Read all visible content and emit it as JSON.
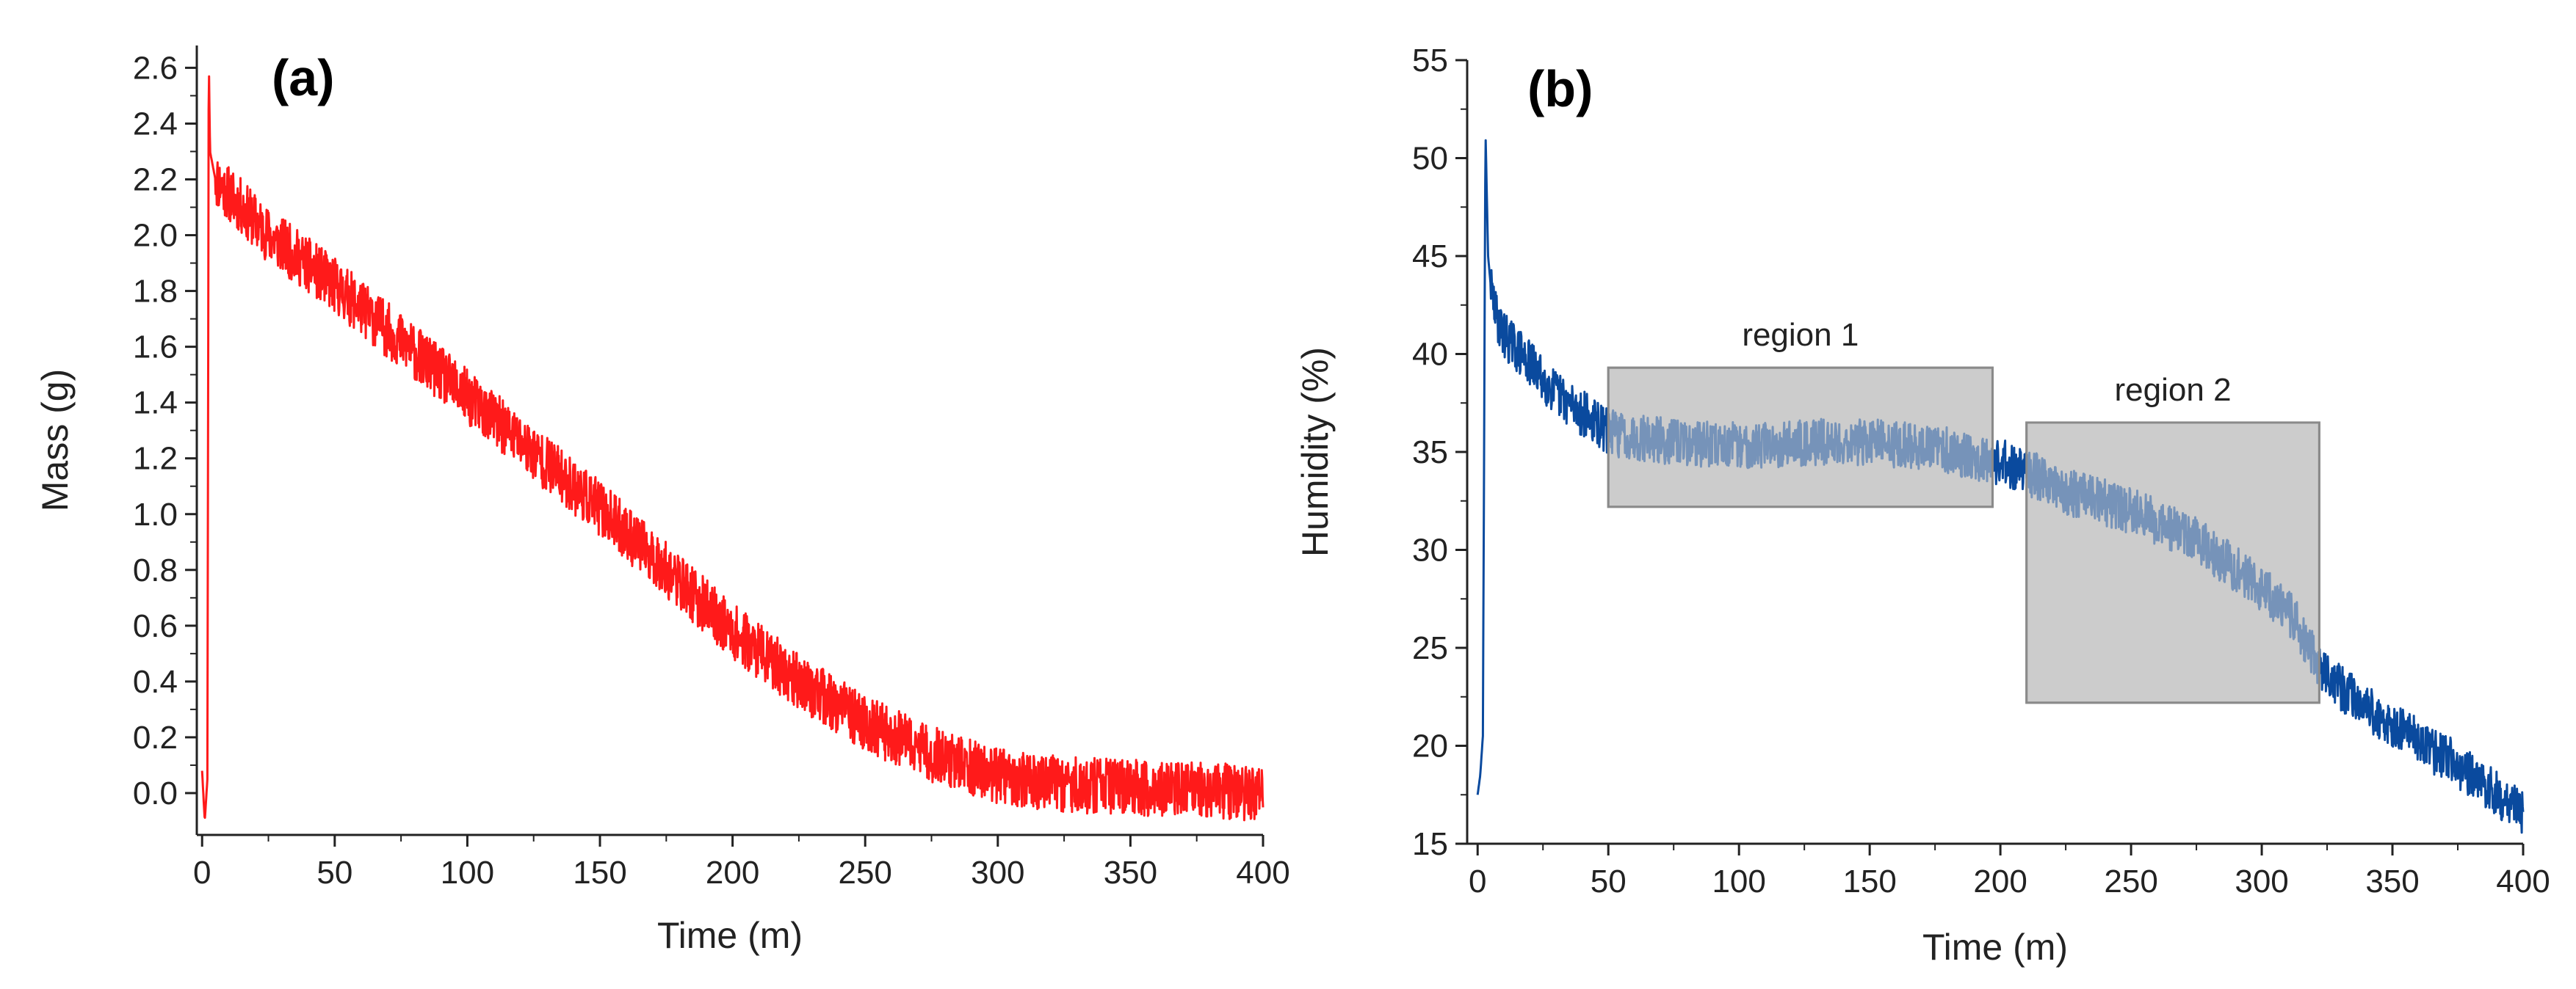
{
  "chart_data": [
    {
      "type": "line",
      "panel_label": "(a)",
      "title": "",
      "xlabel": "Time (m)",
      "ylabel": "Mass (g)",
      "xlim": [
        -2,
        400
      ],
      "ylim": [
        -0.15,
        2.68
      ],
      "xticks": [
        0,
        50,
        100,
        150,
        200,
        250,
        300,
        350,
        400
      ],
      "xtick_labels": [
        "0",
        "50",
        "100",
        "150",
        "200",
        "250",
        "300",
        "350",
        "400"
      ],
      "yticks": [
        0.0,
        0.2,
        0.4,
        0.6,
        0.8,
        1.0,
        1.2,
        1.4,
        1.6,
        1.8,
        2.0,
        2.2,
        2.4,
        2.6
      ],
      "ytick_labels": [
        "0.0",
        "0.2",
        "0.4",
        "0.6",
        "0.8",
        "1.0",
        "1.2",
        "1.4",
        "1.6",
        "1.8",
        "2.0",
        "2.2",
        "2.4",
        "2.6"
      ],
      "grid": false,
      "series": [
        {
          "name": "Mass",
          "color": "#ff1a1a",
          "noise_band": 0.1,
          "x": [
            0,
            1,
            2,
            2.5,
            3,
            4,
            5,
            10,
            25,
            50,
            75,
            100,
            125,
            150,
            175,
            200,
            225,
            250,
            275,
            300,
            325,
            350,
            375,
            400
          ],
          "values": [
            0.08,
            -0.1,
            0.05,
            2.65,
            2.3,
            2.25,
            2.2,
            2.15,
            2.0,
            1.82,
            1.62,
            1.42,
            1.22,
            1.02,
            0.8,
            0.58,
            0.4,
            0.25,
            0.14,
            0.06,
            0.03,
            0.02,
            0.01,
            0.0
          ]
        }
      ]
    },
    {
      "type": "line",
      "panel_label": "(b)",
      "title": "",
      "xlabel": "Time (m)",
      "ylabel": "Humidity (%)",
      "xlim": [
        -4,
        400
      ],
      "ylim": [
        15,
        55
      ],
      "xticks": [
        0,
        50,
        100,
        150,
        200,
        250,
        300,
        350,
        400
      ],
      "xtick_labels": [
        "0",
        "50",
        "100",
        "150",
        "200",
        "250",
        "300",
        "350",
        "400"
      ],
      "yticks": [
        15,
        20,
        25,
        30,
        35,
        40,
        45,
        50,
        55
      ],
      "ytick_labels": [
        "15",
        "20",
        "25",
        "30",
        "35",
        "40",
        "45",
        "50",
        "55"
      ],
      "grid": false,
      "series": [
        {
          "name": "Humidity",
          "color": "#0a4a9e",
          "noise_band": 1.2,
          "x": [
            0,
            1,
            2,
            3,
            4,
            5,
            7,
            10,
            20,
            30,
            40,
            50,
            75,
            100,
            125,
            150,
            175,
            200,
            210,
            225,
            250,
            275,
            300,
            312,
            325,
            350,
            375,
            400
          ],
          "values": [
            17.5,
            18.5,
            20.5,
            51.5,
            45,
            43.5,
            42,
            41,
            39.5,
            38,
            37,
            36,
            35.5,
            35.3,
            35.5,
            35.5,
            35.2,
            34.5,
            34,
            33,
            32,
            30.5,
            28,
            26.5,
            23.5,
            21,
            19,
            16.5
          ]
        }
      ],
      "annotations": [
        {
          "label": "region 1",
          "x_range": [
            50,
            197
          ],
          "y_range": [
            32.2,
            39.3
          ]
        },
        {
          "label": "region 2",
          "x_range": [
            210,
            322
          ],
          "y_range": [
            22.2,
            36.5
          ]
        }
      ]
    }
  ]
}
